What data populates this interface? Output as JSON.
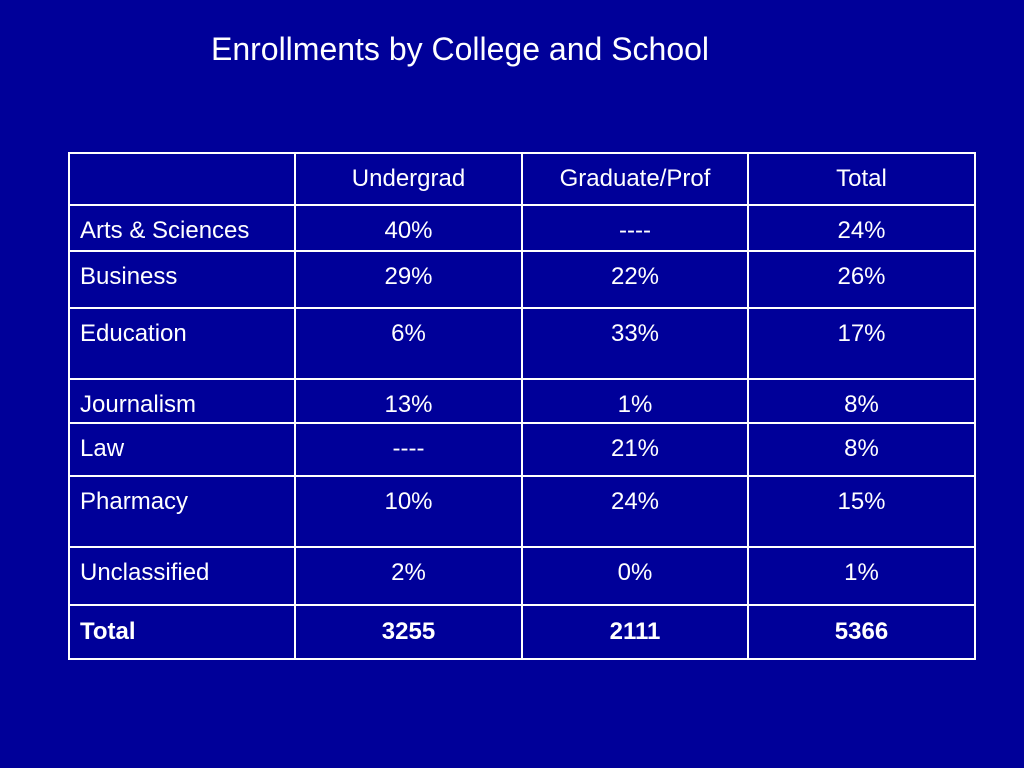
{
  "title": "Enrollments by College and School",
  "table": {
    "headers": [
      "",
      "Undergrad",
      "Graduate/Prof",
      "Total"
    ],
    "rows": [
      {
        "label": "Arts & Sciences",
        "values": [
          "40%",
          "----",
          "24%"
        ]
      },
      {
        "label": "Business",
        "values": [
          "29%",
          "22%",
          "26%"
        ]
      },
      {
        "label": "Education",
        "values": [
          "6%",
          "33%",
          "17%"
        ]
      },
      {
        "label": "Journalism",
        "values": [
          "13%",
          "1%",
          "8%"
        ]
      },
      {
        "label": "Law",
        "values": [
          "----",
          "21%",
          "8%"
        ]
      },
      {
        "label": "Pharmacy",
        "values": [
          "10%",
          "24%",
          "15%"
        ]
      },
      {
        "label": "Unclassified",
        "values": [
          "2%",
          "0%",
          "1%"
        ]
      },
      {
        "label": "Total",
        "values": [
          "3255",
          "2111",
          "5366"
        ]
      }
    ]
  },
  "colors": {
    "background": "#000099",
    "text": "#ffffff",
    "border": "#ffffff"
  }
}
